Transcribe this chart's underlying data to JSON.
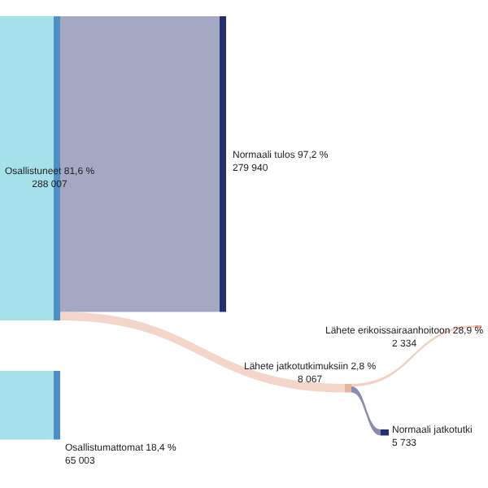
{
  "chart_data": {
    "type": "other",
    "categories": [
      "Osallistuneet 81,6 %",
      "Osallistumattomat 18,4 %",
      "Normaali tulos 97,2 %",
      "Lähete jatkotutkimuksiin 2,8 %",
      "Lähete erikoissairaanhoitoon 28,9 %",
      "Normaali jatkotutki"
    ],
    "values": [
      288007,
      65003,
      279940,
      8067,
      2334,
      5733
    ],
    "value_labels": [
      "288 007",
      "65 003",
      "279 940",
      "8 067",
      "2 334",
      "5 733"
    ],
    "colors": [
      "#a6e0ea",
      "#a6e0ea",
      "#262f6e",
      "#e9b49c",
      "#e9a88c",
      "#262f6e"
    ]
  }
}
